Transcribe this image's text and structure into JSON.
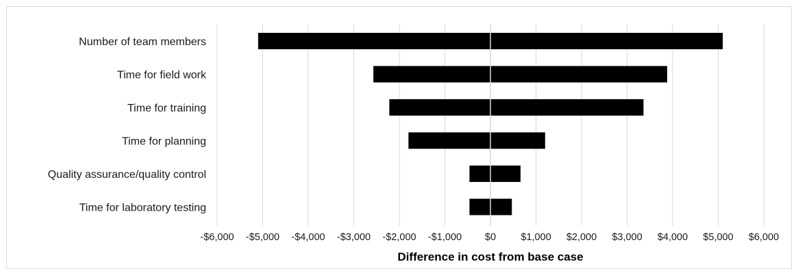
{
  "chart_data": {
    "type": "bar",
    "orientation": "horizontal",
    "variant": "tornado",
    "title": "",
    "xlabel": "Difference in cost from base case",
    "ylabel": "",
    "xlim": [
      -6000,
      6000
    ],
    "x_ticks": [
      -6000,
      -5000,
      -4000,
      -3000,
      -2000,
      -1000,
      0,
      1000,
      2000,
      3000,
      4000,
      5000,
      6000
    ],
    "x_tick_labels": [
      "-$6,000",
      "-$5,000",
      "-$4,000",
      "-$3,000",
      "-$2,000",
      "-$1,000",
      "$0",
      "$1,000",
      "$2,000",
      "$3,000",
      "$4,000",
      "$5,000",
      "$6,000"
    ],
    "grid": "vertical",
    "legend": "none",
    "bar_color": "#000000",
    "categories": [
      "Number of team members",
      "Time for field work",
      "Time for training",
      "Time for planning",
      "Quality assurance/quality control",
      "Time for laboratory testing"
    ],
    "series": [
      {
        "values": [
          -5100,
          -2570,
          -2220,
          -1800,
          -460,
          -460
        ]
      },
      {
        "values": [
          5100,
          3880,
          3360,
          1200,
          660,
          470
        ]
      }
    ]
  }
}
